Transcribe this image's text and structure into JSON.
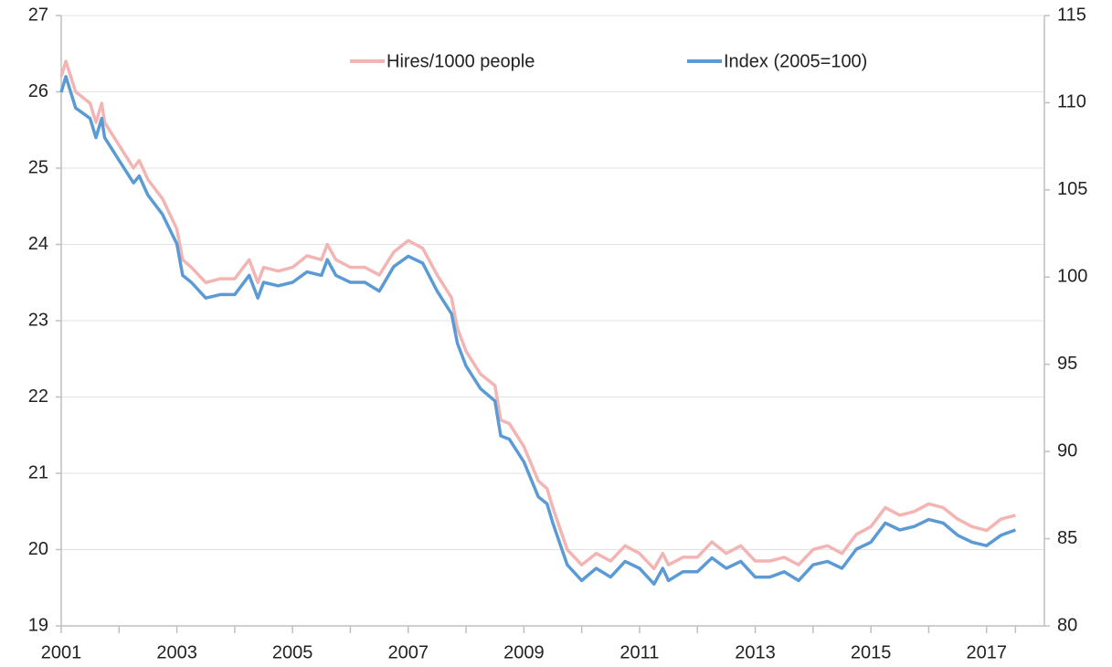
{
  "chart_data": {
    "type": "line",
    "x": [
      2001.0,
      2001.08,
      2001.25,
      2001.5,
      2001.6,
      2001.7,
      2001.75,
      2002.0,
      2002.25,
      2002.35,
      2002.5,
      2002.75,
      2003.0,
      2003.1,
      2003.25,
      2003.5,
      2003.75,
      2004.0,
      2004.25,
      2004.4,
      2004.5,
      2004.75,
      2005.0,
      2005.25,
      2005.5,
      2005.6,
      2005.75,
      2006.0,
      2006.25,
      2006.5,
      2006.75,
      2007.0,
      2007.25,
      2007.5,
      2007.75,
      2007.85,
      2008.0,
      2008.25,
      2008.5,
      2008.6,
      2008.75,
      2009.0,
      2009.25,
      2009.4,
      2009.5,
      2009.75,
      2010.0,
      2010.25,
      2010.5,
      2010.75,
      2011.0,
      2011.25,
      2011.4,
      2011.5,
      2011.75,
      2012.0,
      2012.25,
      2012.5,
      2012.75,
      2013.0,
      2013.25,
      2013.5,
      2013.75,
      2014.0,
      2014.25,
      2014.5,
      2014.75,
      2015.0,
      2015.25,
      2015.5,
      2015.75,
      2016.0,
      2016.25,
      2016.5,
      2016.75,
      2017.0,
      2017.25,
      2017.5
    ],
    "series": [
      {
        "name": "Hires/1000 people",
        "color": "#f2b5b3",
        "axis": "y",
        "values": [
          26.2,
          26.4,
          26.0,
          25.85,
          25.6,
          25.85,
          25.6,
          25.3,
          25.0,
          25.1,
          24.85,
          24.6,
          24.2,
          23.8,
          23.7,
          23.5,
          23.55,
          23.55,
          23.8,
          23.5,
          23.7,
          23.65,
          23.7,
          23.85,
          23.8,
          24.0,
          23.8,
          23.7,
          23.7,
          23.6,
          23.9,
          24.05,
          23.95,
          23.6,
          23.3,
          22.9,
          22.6,
          22.3,
          22.15,
          21.7,
          21.65,
          21.35,
          20.9,
          20.8,
          20.55,
          20.0,
          19.8,
          19.95,
          19.85,
          20.05,
          19.95,
          19.75,
          19.95,
          19.8,
          19.9,
          19.9,
          20.1,
          19.95,
          20.05,
          19.85,
          19.85,
          19.9,
          19.8,
          20.0,
          20.05,
          19.95,
          20.2,
          20.3,
          20.55,
          20.45,
          20.5,
          20.6,
          20.55,
          20.4,
          20.3,
          20.25,
          20.4,
          20.45
        ]
      },
      {
        "name": "Index (2005=100)",
        "color": "#5b9bd5",
        "axis": "y2",
        "values": [
          110.6,
          111.5,
          109.7,
          109.1,
          108.0,
          109.1,
          108.0,
          106.7,
          105.4,
          105.8,
          104.7,
          103.6,
          101.9,
          100.1,
          99.7,
          98.8,
          99.0,
          99.0,
          100.1,
          98.8,
          99.7,
          99.5,
          99.7,
          100.3,
          100.1,
          101.0,
          100.1,
          99.7,
          99.7,
          99.2,
          100.6,
          101.2,
          100.8,
          99.2,
          97.9,
          96.2,
          94.9,
          93.6,
          92.9,
          90.9,
          90.7,
          89.4,
          87.4,
          87.0,
          85.9,
          83.5,
          82.6,
          83.3,
          82.8,
          83.7,
          83.3,
          82.4,
          83.3,
          82.6,
          83.1,
          83.1,
          83.9,
          83.3,
          83.7,
          82.8,
          82.8,
          83.1,
          82.6,
          83.5,
          83.7,
          83.3,
          84.4,
          84.8,
          85.9,
          85.5,
          85.7,
          86.1,
          85.9,
          85.2,
          84.8,
          84.6,
          85.2,
          85.5
        ]
      }
    ],
    "xlim": [
      2001,
      2018
    ],
    "xticks": [
      2001,
      2003,
      2005,
      2007,
      2009,
      2011,
      2013,
      2015,
      2017
    ],
    "ylim": [
      19,
      27
    ],
    "yticks": [
      19,
      20,
      21,
      22,
      23,
      24,
      25,
      26,
      27
    ],
    "y2lim": [
      80,
      115
    ],
    "y2ticks": [
      80,
      85,
      90,
      95,
      100,
      105,
      110,
      115
    ],
    "grid": true,
    "legend": "top"
  }
}
